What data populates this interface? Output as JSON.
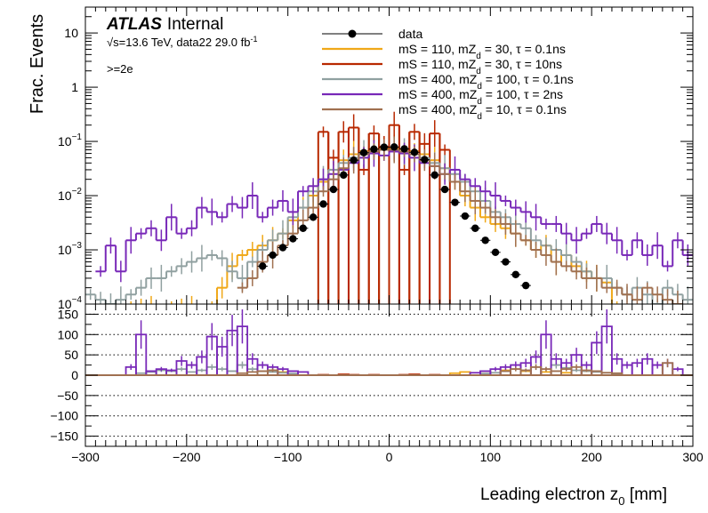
{
  "chart_data": {
    "type": "step-histogram",
    "xlabel_main": "Leading electron z",
    "xlabel_sub": "0",
    "xlabel_unit": " [mm]",
    "ylabel": "Frac. Events",
    "xlim": [
      -300,
      300
    ],
    "ylim": [
      0.0001,
      30
    ],
    "ylog": true,
    "ratio_ylim": [
      -175,
      175
    ],
    "legend_position": "top-center",
    "x_ticks": [
      "−300",
      "−200",
      "−100",
      "0",
      "100",
      "200",
      "300"
    ],
    "y_ticks_main": [
      {
        "v": 10,
        "label": "10"
      },
      {
        "v": 1,
        "label": "1"
      },
      {
        "v": 0.1,
        "label": "10",
        "exp": "−1"
      },
      {
        "v": 0.01,
        "label": "10",
        "exp": "−2"
      },
      {
        "v": 0.001,
        "label": "10",
        "exp": "−3"
      },
      {
        "v": 0.0001,
        "label": "10",
        "exp": "−4"
      }
    ],
    "y_ticks_ratio": [
      150,
      100,
      50,
      0,
      -50,
      -100,
      -150
    ],
    "y_tick_labels_ratio": [
      "150",
      "100",
      "50",
      "0",
      "−50",
      "−100",
      "−150"
    ],
    "atlas_label": "ATLAS",
    "atlas_status": "Internal",
    "energy_text": "s=13.6 TeV, data22 29.0 fb",
    "energy_sqrt": "√",
    "energy_exp": "-1",
    "selection_text": ">=2e",
    "legend": [
      {
        "main": "data",
        "sub": "",
        "rest": ""
      },
      {
        "main": "mS = 110, mZ",
        "sub": "d",
        "rest": " = 30, τ = 0.1ns"
      },
      {
        "main": "mS = 110, mZ",
        "sub": "d",
        "rest": " = 30, τ = 10ns"
      },
      {
        "main": "mS = 400, mZ",
        "sub": "d",
        "rest": " = 100, τ = 0.1ns"
      },
      {
        "main": "mS = 400, mZ",
        "sub": "d",
        "rest": " = 100, τ = 2ns"
      },
      {
        "main": "mS = 400, mZ",
        "sub": "d",
        "rest": " = 10, τ = 0.1ns"
      }
    ],
    "colors": [
      "#000000",
      "#f0a818",
      "#b82800",
      "#90a0a0",
      "#7828b8",
      "#a07050"
    ],
    "data_points": {
      "x": [
        -125,
        -115,
        -105,
        -95,
        -85,
        -75,
        -65,
        -55,
        -45,
        -35,
        -25,
        -15,
        -5,
        5,
        15,
        25,
        35,
        45,
        55,
        65,
        75,
        85,
        95,
        105,
        115,
        125,
        135
      ],
      "y": [
        0.0005,
        0.0008,
        0.0011,
        0.0016,
        0.0025,
        0.004,
        0.007,
        0.013,
        0.024,
        0.045,
        0.062,
        0.072,
        0.078,
        0.079,
        0.073,
        0.063,
        0.046,
        0.024,
        0.013,
        0.0075,
        0.0042,
        0.0025,
        0.0015,
        0.0009,
        0.0006,
        0.00035,
        0.00022
      ]
    },
    "series": [
      {
        "x": [
          -265,
          -255,
          -245,
          -235,
          -225,
          -215,
          -205,
          -195,
          -185,
          -175,
          -165,
          -155,
          -145,
          -135,
          -125,
          -115,
          -105,
          -95,
          -85,
          -75,
          -65,
          -55,
          -45,
          -35,
          -25,
          -15,
          -5,
          5,
          15,
          25,
          35,
          45,
          55,
          65,
          75,
          85,
          95,
          105,
          115,
          125,
          135,
          145,
          155,
          165,
          175,
          185,
          195,
          205,
          215,
          225
        ],
        "values": [
          8e-05,
          8e-05,
          8e-05,
          8e-05,
          8e-05,
          8e-05,
          8e-05,
          8e-05,
          8e-05,
          8e-05,
          0.0002,
          0.0005,
          0.0008,
          0.001,
          0.0012,
          0.0015,
          0.002,
          0.0035,
          0.006,
          0.01,
          0.018,
          0.03,
          0.045,
          0.058,
          0.066,
          0.072,
          0.075,
          0.076,
          0.072,
          0.066,
          0.058,
          0.045,
          0.032,
          0.018,
          0.01,
          0.006,
          0.004,
          0.003,
          0.0025,
          0.002,
          0.0015,
          0.001,
          0.0012,
          0.0006,
          0.0008,
          0.0005,
          0.0004,
          0.0003,
          0.00025,
          8e-05
        ]
      },
      {
        "x": [
          -65,
          -55,
          -45,
          -35,
          -25,
          -15,
          -5,
          5,
          15,
          25,
          35,
          45,
          55
        ],
        "values": [
          0.15,
          0.05,
          0.15,
          0.18,
          0.03,
          0.14,
          0.08,
          0.2,
          0.03,
          0.15,
          0.09,
          0.14,
          0.07
        ]
      },
      {
        "x": [
          -295,
          -285,
          -275,
          -265,
          -255,
          -245,
          -235,
          -225,
          -215,
          -205,
          -195,
          -185,
          -175,
          -165,
          -155,
          -145,
          -135,
          -125,
          -115,
          -105,
          -95,
          -85,
          -75,
          -65,
          -55,
          -45,
          -35,
          -25,
          -15,
          -5,
          5,
          15,
          25,
          35,
          45,
          55,
          65,
          75,
          85,
          95,
          105,
          115,
          125,
          135,
          145,
          155,
          165,
          175,
          185,
          195,
          205,
          215,
          225,
          235,
          245,
          255,
          265,
          275,
          285,
          295
        ],
        "values": [
          0.00015,
          0.00012,
          0.0001,
          0.00012,
          0.00015,
          0.0002,
          0.0003,
          0.0003,
          0.0004,
          0.0005,
          0.0006,
          0.0007,
          0.0008,
          0.0007,
          0.0004,
          0.0003,
          0.0006,
          0.001,
          0.0015,
          0.002,
          0.004,
          0.006,
          0.012,
          0.02,
          0.03,
          0.04,
          0.05,
          0.06,
          0.065,
          0.07,
          0.07,
          0.065,
          0.058,
          0.05,
          0.04,
          0.032,
          0.025,
          0.018,
          0.012,
          0.008,
          0.005,
          0.004,
          0.003,
          0.0025,
          0.0015,
          0.0012,
          0.001,
          0.0008,
          0.0006,
          0.0004,
          0.0003,
          0.0003,
          0.0002,
          0.00015,
          0.0002,
          0.00015,
          0.0001,
          0.0002,
          0.00015,
          0.00012
        ]
      },
      {
        "x": [
          -285,
          -275,
          -265,
          -255,
          -245,
          -235,
          -225,
          -215,
          -205,
          -195,
          -185,
          -175,
          -165,
          -155,
          -145,
          -135,
          -125,
          -115,
          -105,
          -95,
          -85,
          -75,
          -65,
          -55,
          -45,
          -35,
          -25,
          -15,
          -5,
          5,
          15,
          25,
          35,
          45,
          55,
          65,
          75,
          85,
          95,
          105,
          115,
          125,
          135,
          145,
          155,
          165,
          175,
          185,
          195,
          205,
          215,
          225,
          235,
          245,
          255,
          265,
          275,
          285,
          295
        ],
        "values": [
          0.0004,
          0.0012,
          0.0004,
          0.0015,
          0.002,
          0.0025,
          0.0015,
          0.004,
          0.002,
          0.0025,
          0.006,
          0.005,
          0.004,
          0.007,
          0.006,
          0.01,
          0.004,
          0.006,
          0.008,
          0.005,
          0.012,
          0.015,
          0.02,
          0.025,
          0.03,
          0.04,
          0.05,
          0.06,
          0.055,
          0.065,
          0.06,
          0.05,
          0.04,
          0.035,
          0.025,
          0.03,
          0.02,
          0.015,
          0.012,
          0.01,
          0.008,
          0.006,
          0.005,
          0.004,
          0.003,
          0.003,
          0.002,
          0.0015,
          0.002,
          0.003,
          0.002,
          0.0015,
          0.0008,
          0.0015,
          0.0008,
          0.0012,
          0.0005,
          0.0015,
          0.0008
        ]
      },
      {
        "x": [
          -145,
          -135,
          -125,
          -115,
          -105,
          -95,
          -85,
          -75,
          -65,
          -55,
          -45,
          -35,
          -25,
          -15,
          -5,
          5,
          15,
          25,
          35,
          45,
          55,
          65,
          75,
          85,
          95,
          105,
          115,
          125,
          135,
          145,
          155,
          165,
          175,
          185,
          195,
          205,
          215,
          225,
          235,
          245,
          255,
          265,
          275,
          285
        ],
        "values": [
          0.0002,
          0.0003,
          0.0006,
          0.0008,
          0.0012,
          0.002,
          0.0035,
          0.006,
          0.012,
          0.02,
          0.032,
          0.045,
          0.058,
          0.065,
          0.07,
          0.07,
          0.065,
          0.058,
          0.045,
          0.035,
          0.025,
          0.018,
          0.012,
          0.008,
          0.006,
          0.004,
          0.003,
          0.002,
          0.0015,
          0.001,
          0.0008,
          0.0006,
          0.0005,
          0.0004,
          0.0003,
          0.0003,
          0.0002,
          0.0002,
          0.00015,
          0.00012,
          0.0002,
          0.00015,
          0.00012,
          0.0001
        ]
      }
    ],
    "ratio_series": [
      {
        "x": [
          -125,
          -115,
          -105,
          65,
          75,
          95,
          115,
          125,
          135,
          155,
          175,
          195
        ],
        "values": [
          10,
          12,
          8,
          5,
          8,
          10,
          12,
          15,
          10,
          8,
          6,
          10
        ]
      },
      {
        "x": [
          -65,
          -55,
          -45,
          -35,
          -25,
          -15,
          -5,
          5,
          15,
          25,
          35,
          45,
          55
        ],
        "values": [
          1,
          0,
          2,
          1,
          0,
          1,
          0,
          0,
          1,
          2,
          0,
          1,
          0
        ]
      },
      {
        "x": [
          -245,
          -235,
          -225,
          -215,
          -205,
          -195,
          -185,
          -175,
          -165,
          -155,
          -145,
          -135,
          -125,
          -115,
          -105,
          -95,
          95,
          105,
          115,
          125,
          135,
          145,
          155,
          165,
          175,
          185,
          195,
          205,
          215,
          225
        ],
        "values": [
          5,
          8,
          12,
          10,
          15,
          8,
          12,
          20,
          15,
          10,
          25,
          15,
          10,
          8,
          6,
          4,
          4,
          6,
          10,
          15,
          12,
          20,
          15,
          25,
          18,
          12,
          10,
          8,
          6,
          4
        ]
      },
      {
        "x": [
          -255,
          -245,
          -235,
          -225,
          -215,
          -205,
          -195,
          -185,
          -175,
          -165,
          -155,
          -145,
          -135,
          -125,
          -115,
          -105,
          -95,
          -85,
          85,
          95,
          105,
          115,
          125,
          135,
          145,
          155,
          165,
          175,
          185,
          195,
          205,
          215,
          225,
          235,
          245,
          255,
          265,
          275,
          285
        ],
        "values": [
          20,
          100,
          10,
          15,
          12,
          35,
          25,
          45,
          95,
          70,
          110,
          120,
          40,
          25,
          20,
          15,
          10,
          8,
          6,
          10,
          15,
          20,
          25,
          30,
          45,
          100,
          40,
          30,
          50,
          25,
          80,
          120,
          40,
          25,
          30,
          40,
          25,
          30,
          15
        ]
      },
      {
        "x": [
          -145,
          -135,
          -125,
          -115,
          115,
          125,
          135,
          145,
          155,
          165,
          175,
          185,
          195,
          205,
          215,
          225,
          275
        ],
        "values": [
          5,
          8,
          10,
          12,
          10,
          15,
          12,
          20,
          15,
          10,
          15,
          20,
          12,
          10,
          6,
          5,
          30
        ]
      }
    ]
  }
}
